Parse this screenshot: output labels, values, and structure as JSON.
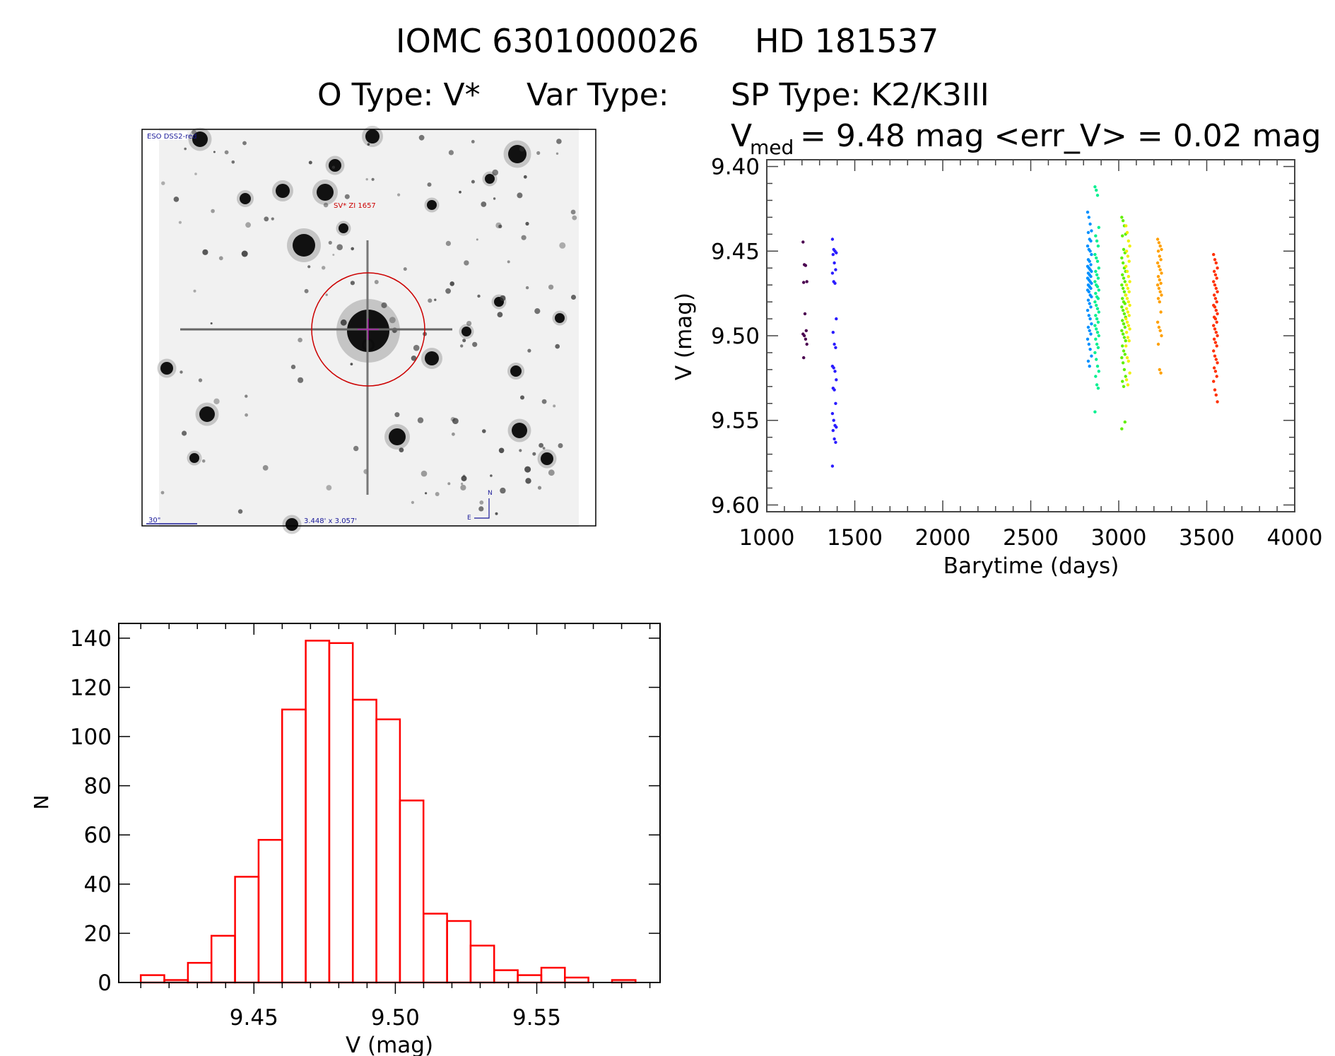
{
  "header": {
    "title_line1_id1": "IOMC 6301000026",
    "title_line1_id2": "HD 181537",
    "title_line2_otype": "O Type: V*",
    "title_line2_vartype": "Var Type:",
    "title_line2_sptype": "SP Type: K2/K3III",
    "vmed_symbol": "V",
    "vmed_subscript": "med",
    "vmed_text": "= 9.48 mag <err_V> = 0.02 mag"
  },
  "image_panel": {
    "survey_label": "ESO DSS2-red",
    "target_label": "SV* ZI 1657",
    "scale_bar_label": "30\"",
    "field_size_label": "3.448' x 3.057'",
    "north_label": "N",
    "east_label": "E",
    "circle_color": "#cc0000"
  },
  "chart_data": [
    {
      "type": "scatter",
      "title": "",
      "xlabel": "Barytime (days)",
      "ylabel": "V (mag)",
      "xlim": [
        1000,
        4000
      ],
      "ylim": [
        9.604,
        9.396
      ],
      "y_inverted": true,
      "xticks": [
        "1000",
        "1500",
        "2000",
        "2500",
        "3000",
        "3500",
        "4000"
      ],
      "yticks": [
        "9.40",
        "9.45",
        "9.50",
        "9.55",
        "9.60"
      ],
      "grid": false,
      "series": [
        {
          "x": 1217,
          "color": "#4b0050",
          "values": [
            9.4446,
            9.458,
            9.4585,
            9.468,
            9.4685,
            9.487,
            9.497,
            9.499,
            9.5,
            9.502,
            9.505,
            9.513
          ]
        },
        {
          "x": 1384,
          "color": "#2a1cff",
          "values": [
            9.443,
            9.449,
            9.45,
            9.451,
            9.452,
            9.457,
            9.461,
            9.463,
            9.468,
            9.469,
            9.49,
            9.498,
            9.505,
            9.507,
            9.518,
            9.519,
            9.521,
            9.526,
            9.531,
            9.532,
            9.54,
            9.546,
            9.55,
            9.553,
            9.554,
            9.556,
            9.561,
            9.563,
            9.577
          ]
        },
        {
          "x": 2834,
          "color": "#0090ff",
          "values": [
            9.427,
            9.43,
            9.434,
            9.438,
            9.439,
            9.443,
            9.444,
            9.447,
            9.449,
            9.45,
            9.452,
            9.455,
            9.456,
            9.458,
            9.459,
            9.46,
            9.461,
            9.462,
            9.463,
            9.464,
            9.465,
            9.466,
            9.467,
            9.468,
            9.469,
            9.47,
            9.471,
            9.472,
            9.473,
            9.474,
            9.476,
            9.477,
            9.479,
            9.481,
            9.483,
            9.485,
            9.488,
            9.49,
            9.493,
            9.495,
            9.497,
            9.499,
            9.502,
            9.505,
            9.508,
            9.512,
            9.515,
            9.518
          ]
        },
        {
          "x": 2876,
          "color": "#00f090",
          "values": [
            9.412,
            9.414,
            9.417,
            9.436,
            9.441,
            9.444,
            9.447,
            9.452,
            9.454,
            9.456,
            9.46,
            9.462,
            9.464,
            9.466,
            9.468,
            9.47,
            9.471,
            9.473,
            9.475,
            9.477,
            9.478,
            9.48,
            9.482,
            9.484,
            9.486,
            9.488,
            9.49,
            9.492,
            9.494,
            9.496,
            9.498,
            9.5,
            9.502,
            9.505,
            9.507,
            9.51,
            9.514,
            9.518,
            9.521,
            9.524,
            9.529,
            9.531,
            9.545
          ]
        },
        {
          "x": 3028,
          "color": "#60f000",
          "values": [
            9.43,
            9.432,
            9.435,
            9.44,
            9.441,
            9.449,
            9.451,
            9.454,
            9.457,
            9.46,
            9.462,
            9.464,
            9.466,
            9.468,
            9.47,
            9.472,
            9.474,
            9.476,
            9.478,
            9.48,
            9.481,
            9.483,
            9.485,
            9.487,
            9.489,
            9.491,
            9.493,
            9.495,
            9.497,
            9.499,
            9.501,
            9.503,
            9.506,
            9.509,
            9.511,
            9.513,
            9.516,
            9.52,
            9.524,
            9.527,
            9.53,
            9.551,
            9.555
          ]
        },
        {
          "x": 3052,
          "color": "#f0f000",
          "values": [
            9.435,
            9.439,
            9.444,
            9.447,
            9.45,
            9.453,
            9.456,
            9.459,
            9.462,
            9.465,
            9.468,
            9.47,
            9.472,
            9.474,
            9.476,
            9.478,
            9.48,
            9.482,
            9.484,
            9.486,
            9.488,
            9.49,
            9.492,
            9.494,
            9.496,
            9.498,
            9.501,
            9.503,
            9.506,
            9.513,
            9.515,
            9.522,
            9.526,
            9.529
          ]
        },
        {
          "x": 3232,
          "color": "#ffa000",
          "values": [
            9.443,
            9.445,
            9.447,
            9.449,
            9.45,
            9.453,
            9.455,
            9.457,
            9.459,
            9.461,
            9.463,
            9.465,
            9.467,
            9.469,
            9.47,
            9.472,
            9.474,
            9.476,
            9.478,
            9.48,
            9.486,
            9.492,
            9.495,
            9.497,
            9.5,
            9.505,
            9.52,
            9.522
          ]
        },
        {
          "x": 3550,
          "color": "#ff3000",
          "values": [
            9.452,
            9.455,
            9.457,
            9.46,
            9.462,
            9.464,
            9.466,
            9.468,
            9.47,
            9.472,
            9.474,
            9.476,
            9.478,
            9.48,
            9.482,
            9.483,
            9.485,
            9.487,
            9.489,
            9.49,
            9.492,
            9.494,
            9.496,
            9.498,
            9.5,
            9.502,
            9.504,
            9.506,
            9.509,
            9.512,
            9.514,
            9.516,
            9.519,
            9.521,
            9.524,
            9.527,
            9.532,
            9.535,
            9.539
          ]
        }
      ]
    },
    {
      "type": "bar",
      "subtype": "histogram",
      "title": "",
      "xlabel": "V (mag)",
      "ylabel": "N",
      "xlim": [
        9.4022,
        9.5936
      ],
      "ylim": [
        0,
        146
      ],
      "xticks": [
        "9.45",
        "9.50",
        "9.55"
      ],
      "yticks": [
        "0",
        "20",
        "40",
        "60",
        "80",
        "100",
        "120",
        "140"
      ],
      "bin_start": 9.41,
      "bin_width": 0.00833,
      "values": [
        3,
        1,
        8,
        19,
        43,
        58,
        111,
        139,
        138,
        115,
        107,
        74,
        28,
        25,
        15,
        5,
        3,
        6,
        2,
        0,
        1
      ],
      "bar_color": "#ff0000",
      "grid": false
    }
  ]
}
